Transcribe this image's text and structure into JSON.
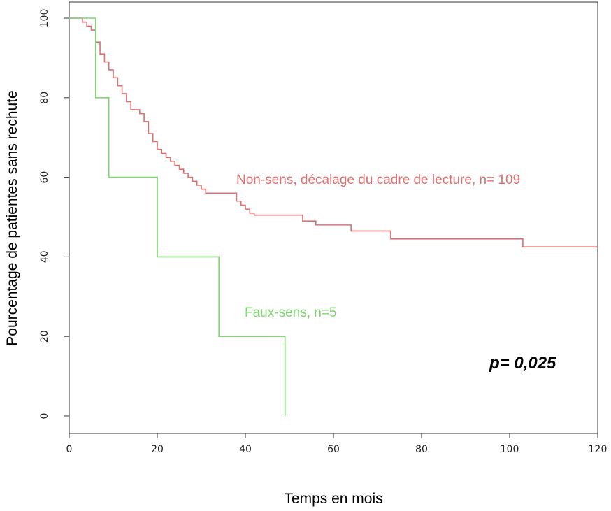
{
  "chart_data": {
    "type": "line",
    "step": true,
    "title": "",
    "xlabel": "Temps en mois",
    "ylabel": "Pourcentage de patientes sans rechute",
    "xlim": [
      0,
      120
    ],
    "ylim": [
      0,
      100
    ],
    "x_ticks": [
      0,
      20,
      40,
      60,
      80,
      100,
      120
    ],
    "y_ticks": [
      0,
      20,
      40,
      60,
      80,
      100
    ],
    "grid": false,
    "series": [
      {
        "name": "Non-sens, décalage du cadre de lecture, n= 109",
        "color": "#e07070",
        "x": [
          0,
          3,
          4,
          5,
          6,
          7,
          8,
          9,
          10,
          11,
          12,
          13,
          14,
          16,
          17,
          18,
          19,
          20,
          21,
          22,
          23,
          24,
          25,
          26,
          27,
          28,
          29,
          30,
          31,
          32,
          33,
          34,
          38,
          39,
          40,
          41,
          42,
          53,
          56,
          64,
          73,
          103,
          120
        ],
        "y": [
          100,
          99,
          98,
          97,
          94,
          91,
          89,
          87,
          85,
          83,
          81,
          79,
          77,
          76,
          74,
          71,
          69,
          67,
          66,
          65,
          64,
          63,
          62,
          61,
          60,
          59,
          58,
          57,
          56,
          56,
          56,
          56,
          54,
          53,
          52,
          51,
          50.5,
          49,
          48,
          46.5,
          44.5,
          42.5,
          42.5
        ]
      },
      {
        "name": "Faux-sens, n=5",
        "color": "#7dd66e",
        "x": [
          0,
          6,
          9,
          20,
          34,
          49
        ],
        "y": [
          100,
          80,
          60,
          40,
          20,
          0
        ]
      }
    ],
    "annotations": [
      {
        "text": "p= 0,025"
      }
    ]
  }
}
